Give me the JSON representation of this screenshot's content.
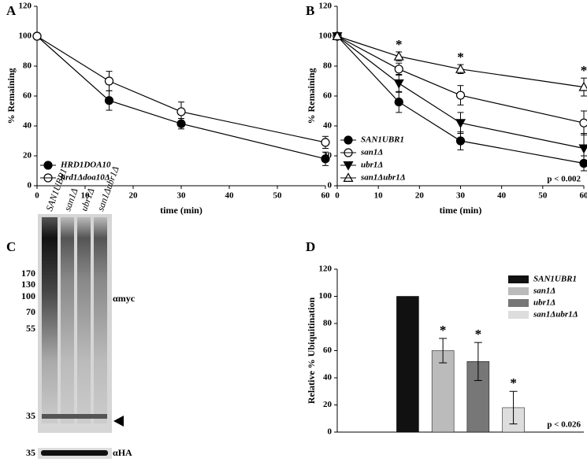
{
  "chart_data": [
    {
      "type": "line",
      "panel": "A",
      "xlabel": "time (min)",
      "ylabel": "% Remaining",
      "x": [
        0,
        15,
        30,
        60
      ],
      "xlim": [
        0,
        60
      ],
      "xticks": [
        0,
        10,
        20,
        30,
        40,
        50,
        60
      ],
      "ylim": [
        0,
        120
      ],
      "yticks": [
        0,
        20,
        40,
        60,
        80,
        100,
        120
      ],
      "legend": "lower left",
      "series": [
        {
          "name": "HRD1DOA10",
          "color": "#000000",
          "marker": "circle",
          "filled": true,
          "values": [
            100,
            57,
            41.5,
            18
          ],
          "errors": [
            null,
            6.5,
            3.5,
            4.5
          ]
        },
        {
          "name": "hrd1Δdoa10Δ",
          "color": "#000000",
          "marker": "circle",
          "filled": false,
          "values": [
            100,
            70,
            49.5,
            29
          ],
          "errors": [
            null,
            6.5,
            6.5,
            4
          ]
        }
      ]
    },
    {
      "type": "line",
      "panel": "B",
      "xlabel": "time (min)",
      "ylabel": "% Remaining",
      "x": [
        0,
        15,
        30,
        60
      ],
      "xlim": [
        0,
        60
      ],
      "xticks": [
        0,
        10,
        20,
        30,
        40,
        50,
        60
      ],
      "ylim": [
        0,
        120
      ],
      "yticks": [
        0,
        20,
        40,
        60,
        80,
        100,
        120
      ],
      "legend": "lower left",
      "x_annotations": [
        null,
        "*",
        "*",
        "*"
      ],
      "note": "p < 0.002",
      "series": [
        {
          "name": "SAN1UBR1",
          "color": "#000000",
          "marker": "circle",
          "filled": true,
          "values": [
            100,
            56,
            30,
            15
          ],
          "errors": [
            null,
            7,
            6,
            5
          ]
        },
        {
          "name": "san1Δ",
          "color": "#000000",
          "marker": "circle",
          "filled": false,
          "values": [
            100,
            78,
            60.5,
            42
          ],
          "errors": [
            null,
            4,
            6.5,
            8
          ]
        },
        {
          "name": "ubr1Δ",
          "color": "#000000",
          "marker": "triangle-down",
          "filled": true,
          "values": [
            100,
            68.5,
            42,
            25
          ],
          "errors": [
            null,
            6,
            7,
            10
          ]
        },
        {
          "name": "san1Δubr1Δ",
          "color": "#000000",
          "marker": "triangle-up",
          "filled": false,
          "values": [
            100,
            86.5,
            78,
            66
          ],
          "errors": [
            null,
            3,
            3,
            6
          ]
        }
      ]
    },
    {
      "type": "bar",
      "panel": "D",
      "ylabel": "Relative % Ubiquitination",
      "categories": [
        "SAN1UBR1",
        "san1Δ",
        "ubr1Δ",
        "san1Δubr1Δ"
      ],
      "values": [
        100,
        60,
        52,
        18
      ],
      "errors": [
        null,
        9,
        14,
        12
      ],
      "colors": [
        "#111111",
        "#bbbbbb",
        "#777777",
        "#dddddd"
      ],
      "value_annotations": [
        null,
        "*",
        "*",
        "*"
      ],
      "note": "p < 0.026",
      "ylim": [
        0,
        120
      ],
      "yticks": [
        0,
        20,
        40,
        60,
        80,
        100,
        120
      ],
      "legend": "upper right"
    }
  ],
  "blot": {
    "panel": "C",
    "lanes": [
      "SAN1UBR1",
      "san1Δ",
      "ubr1Δ",
      "san1Δubr1Δ"
    ],
    "mw_markers": [
      170,
      130,
      100,
      70,
      55,
      35
    ],
    "antibodies": [
      "αmyc",
      "αHA"
    ],
    "loading_marker": 35
  }
}
